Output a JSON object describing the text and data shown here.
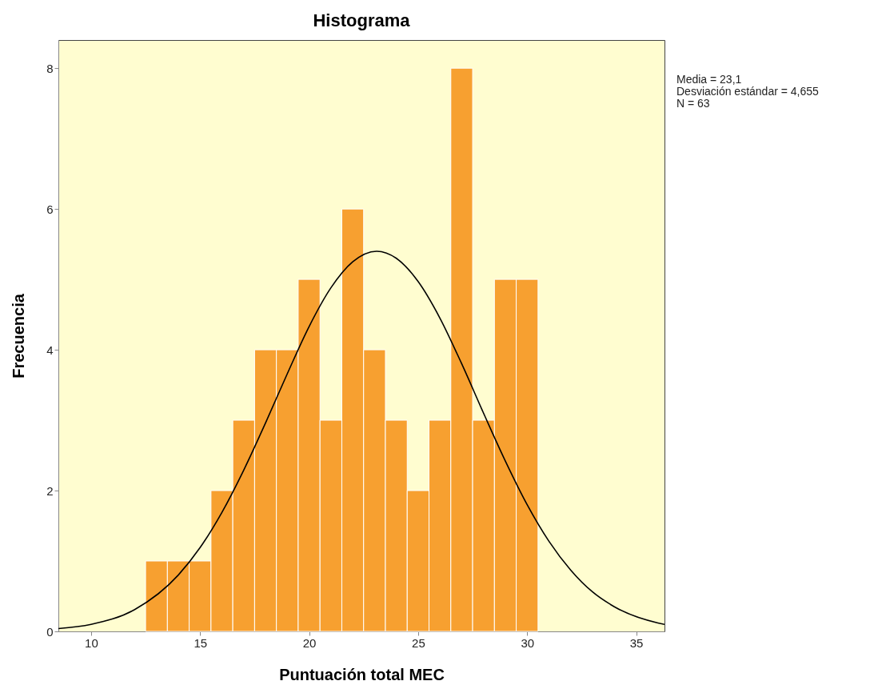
{
  "chart_data": {
    "type": "histogram",
    "title": "Histograma",
    "xlabel": "Puntuación total MEC",
    "ylabel": "Frecuencia",
    "bins": [
      12.5,
      13.5,
      14.5,
      15.5,
      16.5,
      17.5,
      18.5,
      19.5,
      20.5,
      21.5,
      22.5,
      23.5,
      24.5,
      25.5,
      26.5,
      27.5,
      28.5,
      29.5,
      30.5
    ],
    "values": [
      1,
      1,
      1,
      2,
      3,
      4,
      4,
      5,
      3,
      6,
      4,
      3,
      2,
      3,
      8,
      3,
      5,
      5
    ],
    "color": "#f7a030",
    "series": [
      {
        "type": "line",
        "color": "#000000",
        "x": [
          8.5,
          10,
          12,
          14,
          15,
          16,
          17,
          18,
          19,
          20,
          21,
          22,
          23.1,
          24,
          25,
          26,
          27,
          28,
          29,
          30,
          31,
          32,
          33,
          34,
          36,
          36.3
        ],
        "values": [
          0.04,
          0.1,
          0.31,
          0.8,
          1.19,
          1.69,
          2.29,
          2.96,
          3.66,
          4.33,
          4.88,
          5.25,
          5.4,
          5.3,
          4.97,
          4.45,
          3.8,
          3.1,
          2.42,
          1.8,
          1.28,
          0.87,
          0.56,
          0.35,
          0.12,
          0.1
        ]
      }
    ],
    "xlim": [
      8.5,
      36.3
    ],
    "xticks": [
      10,
      15,
      20,
      25,
      30,
      35
    ],
    "ylim": [
      0,
      8.4
    ],
    "yticks": [
      0,
      2,
      4,
      6,
      8
    ],
    "grid": false,
    "annotations": [
      "Media = 23,1",
      "Desviación estándar = 4,655",
      "N = 63"
    ]
  }
}
